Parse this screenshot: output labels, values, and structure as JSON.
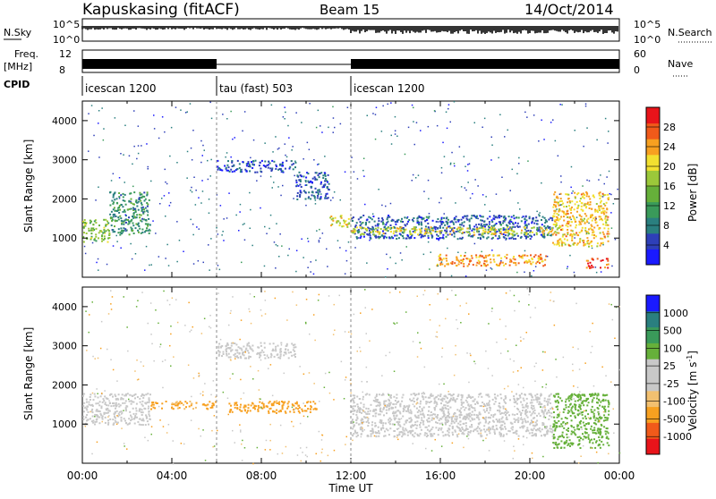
{
  "header": {
    "station": "Kapuskasing (fitACF)",
    "beam": "Beam 15",
    "date": "14/Oct/2014"
  },
  "strips": {
    "nsky_label": "N.Sky",
    "nsky_ticks": [
      "10^5",
      "10^0"
    ],
    "nsearch_label": "N.Search",
    "nsearch_ticks": [
      "10^5",
      "10^0"
    ],
    "freq_label": "Freq.",
    "freq_unit": "[MHz]",
    "freq_ticks": [
      "12",
      "8"
    ],
    "nave_label": "Nave",
    "nave_ticks": [
      "60",
      "0"
    ],
    "cpid_label": "CPID",
    "cpid_segments": [
      {
        "label": "icescan 1200",
        "start": 0.0,
        "end": 6.0
      },
      {
        "label": "tau (fast) 503",
        "start": 6.0,
        "end": 12.0
      },
      {
        "label": "icescan 1200",
        "start": 12.0,
        "end": 24.0
      }
    ]
  },
  "chart_data": [
    {
      "type": "heatmap",
      "panel": "power",
      "ylabel": "Slant Range [km]",
      "ylim": [
        0,
        4500
      ],
      "yticks": [
        "1000",
        "2000",
        "3000",
        "4000"
      ],
      "xlim": [
        0,
        24
      ],
      "colorbar_label": "Power [dB]",
      "colorbar_ticks": [
        "28",
        "24",
        "20",
        "16",
        "12",
        "8",
        "4"
      ],
      "colorbar_colors": [
        "#1a1aff",
        "#2e3fb8",
        "#2a7f7f",
        "#3a9a5a",
        "#66b03a",
        "#9bc83a",
        "#f2e030",
        "#f7a020",
        "#f05a1a",
        "#e8141a"
      ],
      "colorbar_range": [
        0,
        32
      ],
      "bands": [
        {
          "t": [
            0.0,
            1.2
          ],
          "r": [
            900,
            1500
          ],
          "level": 16
        },
        {
          "t": [
            1.2,
            3.0
          ],
          "r": [
            1100,
            2200
          ],
          "level": 10
        },
        {
          "t": [
            6.0,
            9.5
          ],
          "r": [
            2700,
            3000
          ],
          "level": 5
        },
        {
          "t": [
            9.5,
            11.0
          ],
          "r": [
            2000,
            2700
          ],
          "level": 6
        },
        {
          "t": [
            11.0,
            12.0
          ],
          "r": [
            1300,
            1600
          ],
          "level": 20
        },
        {
          "t": [
            12.0,
            21.0
          ],
          "r": [
            1000,
            1600
          ],
          "level": 6
        },
        {
          "t": [
            12.0,
            21.0
          ],
          "r": [
            1100,
            1300
          ],
          "level": 20
        },
        {
          "t": [
            15.8,
            20.7
          ],
          "r": [
            300,
            600
          ],
          "level": 24
        },
        {
          "t": [
            21.0,
            23.5
          ],
          "r": [
            800,
            2200
          ],
          "level": 22
        },
        {
          "t": [
            22.5,
            23.5
          ],
          "r": [
            250,
            500
          ],
          "level": 28
        }
      ]
    },
    {
      "type": "heatmap",
      "panel": "velocity",
      "ylabel": "Slant Range [km]",
      "ylim": [
        0,
        4500
      ],
      "yticks": [
        "1000",
        "2000",
        "3000",
        "4000"
      ],
      "xlim": [
        0,
        24
      ],
      "colorbar_label": "Velocity [m s",
      "colorbar_unit_sup": "-1",
      "colorbar_ticks": [
        "1000",
        "500",
        "100",
        "25",
        "-25",
        "-100",
        "-500",
        "-1000"
      ],
      "colorbar_colors": [
        "#e8141a",
        "#f05a1a",
        "#f7a020",
        "#f2c070",
        "#c8c8c8",
        "#c8c8c8",
        "#66b03a",
        "#3a9a5a",
        "#2a7f7f",
        "#1a1aff"
      ],
      "bands": [
        {
          "t": [
            0.0,
            3.0
          ],
          "r": [
            1000,
            1800
          ],
          "v": 0
        },
        {
          "t": [
            3.0,
            6.0
          ],
          "r": [
            1400,
            1600
          ],
          "v": -150
        },
        {
          "t": [
            6.0,
            9.5
          ],
          "r": [
            2700,
            3100
          ],
          "v": 0
        },
        {
          "t": [
            6.5,
            10.5
          ],
          "r": [
            1300,
            1600
          ],
          "v": -300
        },
        {
          "t": [
            12.0,
            21.0
          ],
          "r": [
            700,
            1800
          ],
          "v": 0
        },
        {
          "t": [
            21.0,
            23.5
          ],
          "r": [
            400,
            1800
          ],
          "v": 300
        }
      ]
    }
  ],
  "xaxis": {
    "ticks": [
      "00:00",
      "04:00",
      "08:00",
      "12:00",
      "16:00",
      "20:00",
      "00:00"
    ],
    "label": "Time UT"
  }
}
